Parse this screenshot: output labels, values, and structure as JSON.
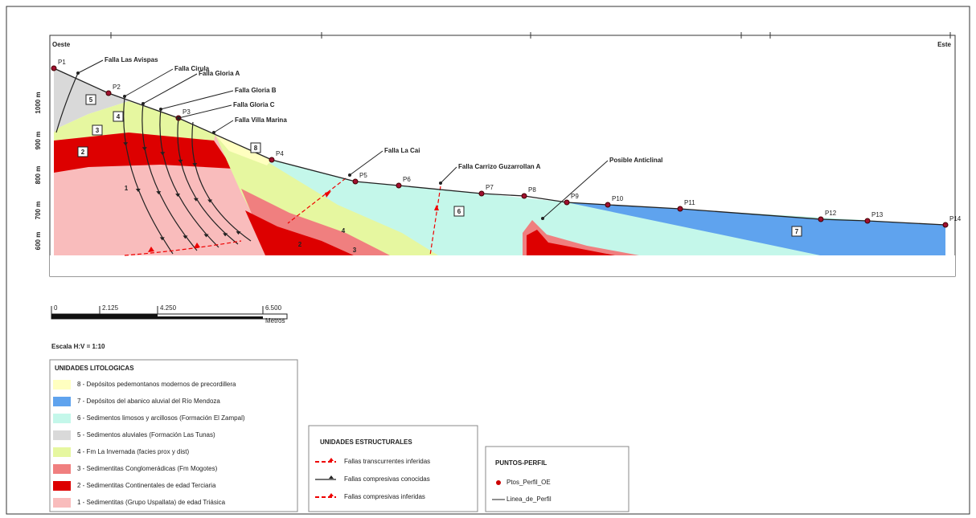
{
  "section": {
    "west": "Oeste",
    "east": "Este",
    "elevations": [
      "1000 m",
      "900 m",
      "800 m",
      "700 m",
      "600 m"
    ],
    "points": [
      "P1",
      "P2",
      "P3",
      "P4",
      "P5",
      "P6",
      "P7",
      "P8",
      "P9",
      "P10",
      "P11",
      "P12",
      "P13",
      "P14"
    ],
    "faults": [
      "Falla Las Avispas",
      "Falla Cirula",
      "Falla Gloria A",
      "Falla Gloria B",
      "Falla Gloria C",
      "Falla Villa Marina",
      "Falla La Cai",
      "Falla Carrizo Guzarrollan A",
      "Posible Anticlinal"
    ],
    "unit_labels": [
      "5",
      "4",
      "3",
      "2",
      "1",
      "8",
      "6",
      "4",
      "2",
      "3",
      "7"
    ]
  },
  "scale": {
    "title": "Escala H:V = 1:10",
    "ticks": [
      "0",
      "2.125",
      "4.250",
      "6.500"
    ],
    "unit": "Metros"
  },
  "legend_litho": {
    "title": "UNIDADES LITOLOGICAS",
    "items": [
      {
        "label": "8 - Depósitos pedemontanos modernos de precordillera",
        "color": "#ffffc0"
      },
      {
        "label": "7 - Depósitos del abanico aluvial del Río Mendoza",
        "color": "#5fa3ee"
      },
      {
        "label": "6 - Sedimentos limosos y arcillosos (Formación El Zampal)",
        "color": "#c4f7ea"
      },
      {
        "label": "5 - Sedimentos aluviales (Formación Las Tunas)",
        "color": "#d9d9d9"
      },
      {
        "label": "4 - Fm La Invernada (facies prox y dist)",
        "color": "#e6f7a0"
      },
      {
        "label": "3 - Sedimentitas Conglomerádicas (Fm Mogotes)",
        "color": "#f07f7f"
      },
      {
        "label": "2 - Sedimentitas Continentales de edad Terciaria",
        "color": "#dd0000"
      },
      {
        "label": "1 - Sedimentitas (Grupo Uspallata) de edad Triásica",
        "color": "#f9bcbc"
      }
    ]
  },
  "legend_struct": {
    "title": "UNIDADES ESTRUCTURALES",
    "items": [
      "Fallas transcurrentes inferidas",
      "Fallas compresivas conocidas",
      "Fallas compresivas inferidas"
    ]
  },
  "legend_points": {
    "title": "PUNTOS-PERFIL",
    "items": [
      "Ptos_Perfil_OE",
      "Linea_de_Perfil"
    ]
  }
}
